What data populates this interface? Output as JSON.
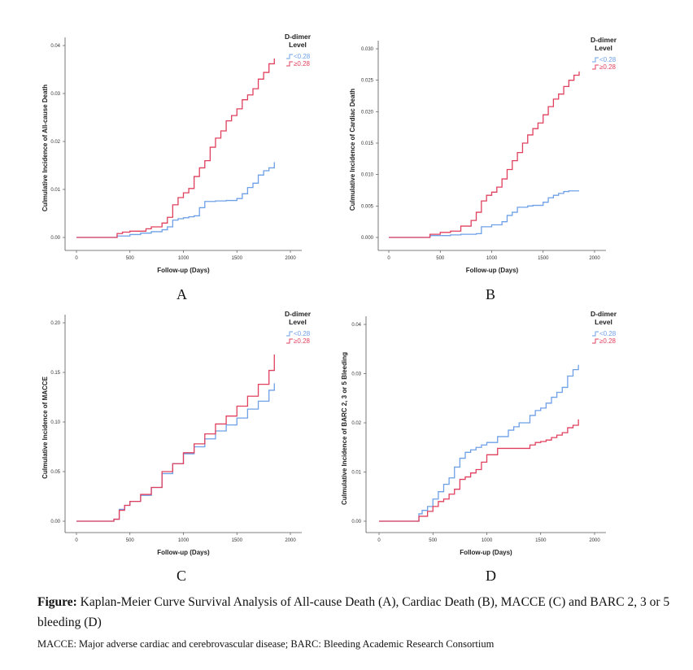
{
  "chart_data": [
    {
      "id": "A",
      "type": "line",
      "step": true,
      "xlabel": "Follow-up (Days)",
      "ylabel": "Culmulative Incidence of All-cause Death",
      "xticks": [
        "0",
        "500",
        "1000",
        "1500",
        "2000"
      ],
      "yticks": [
        "0.00",
        "0.01",
        "0.02",
        "0.03",
        "0.04"
      ],
      "xlim": [
        0,
        2000
      ],
      "ylim": [
        0,
        0.04
      ],
      "legend_title": "D-dimer Level",
      "legend_position": "top-right",
      "series": [
        {
          "name": "<0.28",
          "color": "#6ea0e8",
          "x": [
            0,
            380,
            500,
            600,
            700,
            800,
            850,
            900,
            950,
            1000,
            1050,
            1100,
            1150,
            1200,
            1300,
            1400,
            1500,
            1550,
            1600,
            1650,
            1700,
            1750,
            1800,
            1850
          ],
          "y": [
            0,
            0.0003,
            0.0006,
            0.0009,
            0.0012,
            0.0016,
            0.0022,
            0.0036,
            0.0039,
            0.0041,
            0.0043,
            0.0045,
            0.0062,
            0.0075,
            0.0076,
            0.0077,
            0.0081,
            0.0091,
            0.0104,
            0.0113,
            0.013,
            0.0139,
            0.0145,
            0.0157
          ]
        },
        {
          "name": "≥0.28",
          "color": "#e0405e",
          "x": [
            0,
            380,
            430,
            500,
            600,
            650,
            700,
            800,
            850,
            900,
            950,
            1000,
            1050,
            1100,
            1150,
            1200,
            1250,
            1300,
            1350,
            1400,
            1450,
            1500,
            1550,
            1600,
            1650,
            1700,
            1750,
            1800,
            1850
          ],
          "y": [
            0,
            0.0008,
            0.0011,
            0.0013,
            0.0013,
            0.0018,
            0.0022,
            0.003,
            0.0042,
            0.0068,
            0.0083,
            0.0093,
            0.0102,
            0.0127,
            0.0145,
            0.016,
            0.0188,
            0.0207,
            0.0222,
            0.0243,
            0.0254,
            0.0268,
            0.0287,
            0.0297,
            0.031,
            0.033,
            0.0344,
            0.0362,
            0.0373
          ]
        }
      ]
    },
    {
      "id": "B",
      "type": "line",
      "step": true,
      "xlabel": "Follow-up (Days)",
      "ylabel": "Culmulative Incidence of Cardiac Death",
      "xticks": [
        "0",
        "500",
        "1000",
        "1500",
        "2000"
      ],
      "yticks": [
        "0.000",
        "0.005",
        "0.010",
        "0.015",
        "0.020",
        "0.025",
        "0.030"
      ],
      "xlim": [
        0,
        2000
      ],
      "ylim": [
        0,
        0.03
      ],
      "legend_title": "D-dimer Level",
      "legend_position": "top-right",
      "series": [
        {
          "name": "<0.28",
          "color": "#6ea0e8",
          "x": [
            0,
            400,
            600,
            700,
            850,
            900,
            1000,
            1100,
            1150,
            1200,
            1250,
            1350,
            1400,
            1500,
            1550,
            1600,
            1650,
            1700,
            1750,
            1800,
            1850
          ],
          "y": [
            0,
            0.0003,
            0.0004,
            0.0005,
            0.0006,
            0.0017,
            0.002,
            0.0025,
            0.0035,
            0.004,
            0.0048,
            0.005,
            0.0051,
            0.0056,
            0.0063,
            0.0067,
            0.007,
            0.0073,
            0.0074,
            0.0074,
            0.0074
          ]
        },
        {
          "name": "≥0.28",
          "color": "#e0405e",
          "x": [
            0,
            400,
            500,
            600,
            700,
            800,
            850,
            900,
            950,
            1000,
            1050,
            1100,
            1150,
            1200,
            1250,
            1300,
            1350,
            1400,
            1450,
            1500,
            1550,
            1600,
            1650,
            1700,
            1750,
            1800,
            1850
          ],
          "y": [
            0,
            0.0005,
            0.0008,
            0.001,
            0.0018,
            0.0027,
            0.004,
            0.0058,
            0.0067,
            0.0072,
            0.008,
            0.0093,
            0.0108,
            0.0122,
            0.0135,
            0.015,
            0.0163,
            0.0173,
            0.0182,
            0.0195,
            0.0208,
            0.022,
            0.0228,
            0.024,
            0.025,
            0.0258,
            0.0264
          ]
        }
      ]
    },
    {
      "id": "C",
      "type": "line",
      "step": true,
      "xlabel": "Follow-up (Days)",
      "ylabel": "Culmulative Incidence of MACCE",
      "xticks": [
        "0",
        "500",
        "1000",
        "1500",
        "2000"
      ],
      "yticks": [
        "0.00",
        "0.05",
        "0.10",
        "0.15",
        "0.20"
      ],
      "xlim": [
        0,
        2000
      ],
      "ylim": [
        0,
        0.2
      ],
      "legend_title": "D-dimer Level",
      "legend_position": "top-right",
      "series": [
        {
          "name": "<0.28",
          "color": "#6ea0e8",
          "x": [
            0,
            350,
            400,
            450,
            500,
            600,
            700,
            800,
            900,
            1000,
            1100,
            1200,
            1300,
            1400,
            1500,
            1600,
            1700,
            1800,
            1850
          ],
          "y": [
            0,
            0.002,
            0.012,
            0.016,
            0.02,
            0.026,
            0.034,
            0.048,
            0.058,
            0.068,
            0.075,
            0.083,
            0.091,
            0.097,
            0.104,
            0.113,
            0.121,
            0.132,
            0.139
          ]
        },
        {
          "name": "≥0.28",
          "color": "#e0405e",
          "x": [
            0,
            350,
            400,
            450,
            500,
            600,
            700,
            800,
            900,
            1000,
            1100,
            1200,
            1300,
            1400,
            1500,
            1600,
            1700,
            1800,
            1850
          ],
          "y": [
            0,
            0.002,
            0.011,
            0.016,
            0.02,
            0.027,
            0.034,
            0.05,
            0.058,
            0.069,
            0.078,
            0.088,
            0.098,
            0.106,
            0.116,
            0.126,
            0.138,
            0.152,
            0.168
          ]
        }
      ]
    },
    {
      "id": "D",
      "type": "line",
      "step": true,
      "xlabel": "Follow-up (Days)",
      "ylabel": "Culmulative Incidence of BARC 2, 3 or 5 Bleeding",
      "xticks": [
        "0",
        "500",
        "1000",
        "1500",
        "2000"
      ],
      "yticks": [
        "0.00",
        "0.01",
        "0.02",
        "0.03",
        "0.04"
      ],
      "xlim": [
        0,
        2000
      ],
      "ylim": [
        0,
        0.04
      ],
      "legend_title": "D-dimer Level",
      "legend_position": "top-right",
      "series": [
        {
          "name": "<0.28",
          "color": "#6ea0e8",
          "x": [
            0,
            370,
            400,
            450,
            500,
            550,
            600,
            650,
            700,
            750,
            800,
            850,
            900,
            950,
            1000,
            1100,
            1200,
            1250,
            1300,
            1400,
            1450,
            1500,
            1550,
            1600,
            1650,
            1700,
            1750,
            1800,
            1850
          ],
          "y": [
            0,
            0.0015,
            0.0022,
            0.003,
            0.0045,
            0.006,
            0.0075,
            0.0088,
            0.011,
            0.0128,
            0.014,
            0.0145,
            0.015,
            0.0155,
            0.016,
            0.0172,
            0.0185,
            0.0192,
            0.02,
            0.0215,
            0.0225,
            0.023,
            0.024,
            0.0252,
            0.0262,
            0.0272,
            0.0295,
            0.0308,
            0.0318
          ]
        },
        {
          "name": "≥0.28",
          "color": "#e0405e",
          "x": [
            0,
            370,
            450,
            500,
            550,
            600,
            650,
            700,
            750,
            800,
            850,
            900,
            950,
            1000,
            1100,
            1200,
            1300,
            1400,
            1450,
            1500,
            1550,
            1600,
            1650,
            1700,
            1750,
            1800,
            1850
          ],
          "y": [
            0,
            0.001,
            0.002,
            0.003,
            0.004,
            0.0045,
            0.0055,
            0.0065,
            0.0085,
            0.009,
            0.0098,
            0.0105,
            0.012,
            0.0135,
            0.0148,
            0.0148,
            0.0148,
            0.0155,
            0.016,
            0.0162,
            0.0165,
            0.017,
            0.0175,
            0.018,
            0.019,
            0.0195,
            0.0207
          ]
        }
      ]
    }
  ],
  "caption": {
    "label": "Figure:",
    "text": " Kaplan-Meier Curve Survival Analysis of All-cause Death (A), Cardiac Death (B), MACCE (C) and BARC 2, 3 or 5 bleeding (D)"
  },
  "footnote": "MACCE: Major adverse cardiac and cerebrovascular disease; BARC: Bleeding Academic Research Consortium"
}
